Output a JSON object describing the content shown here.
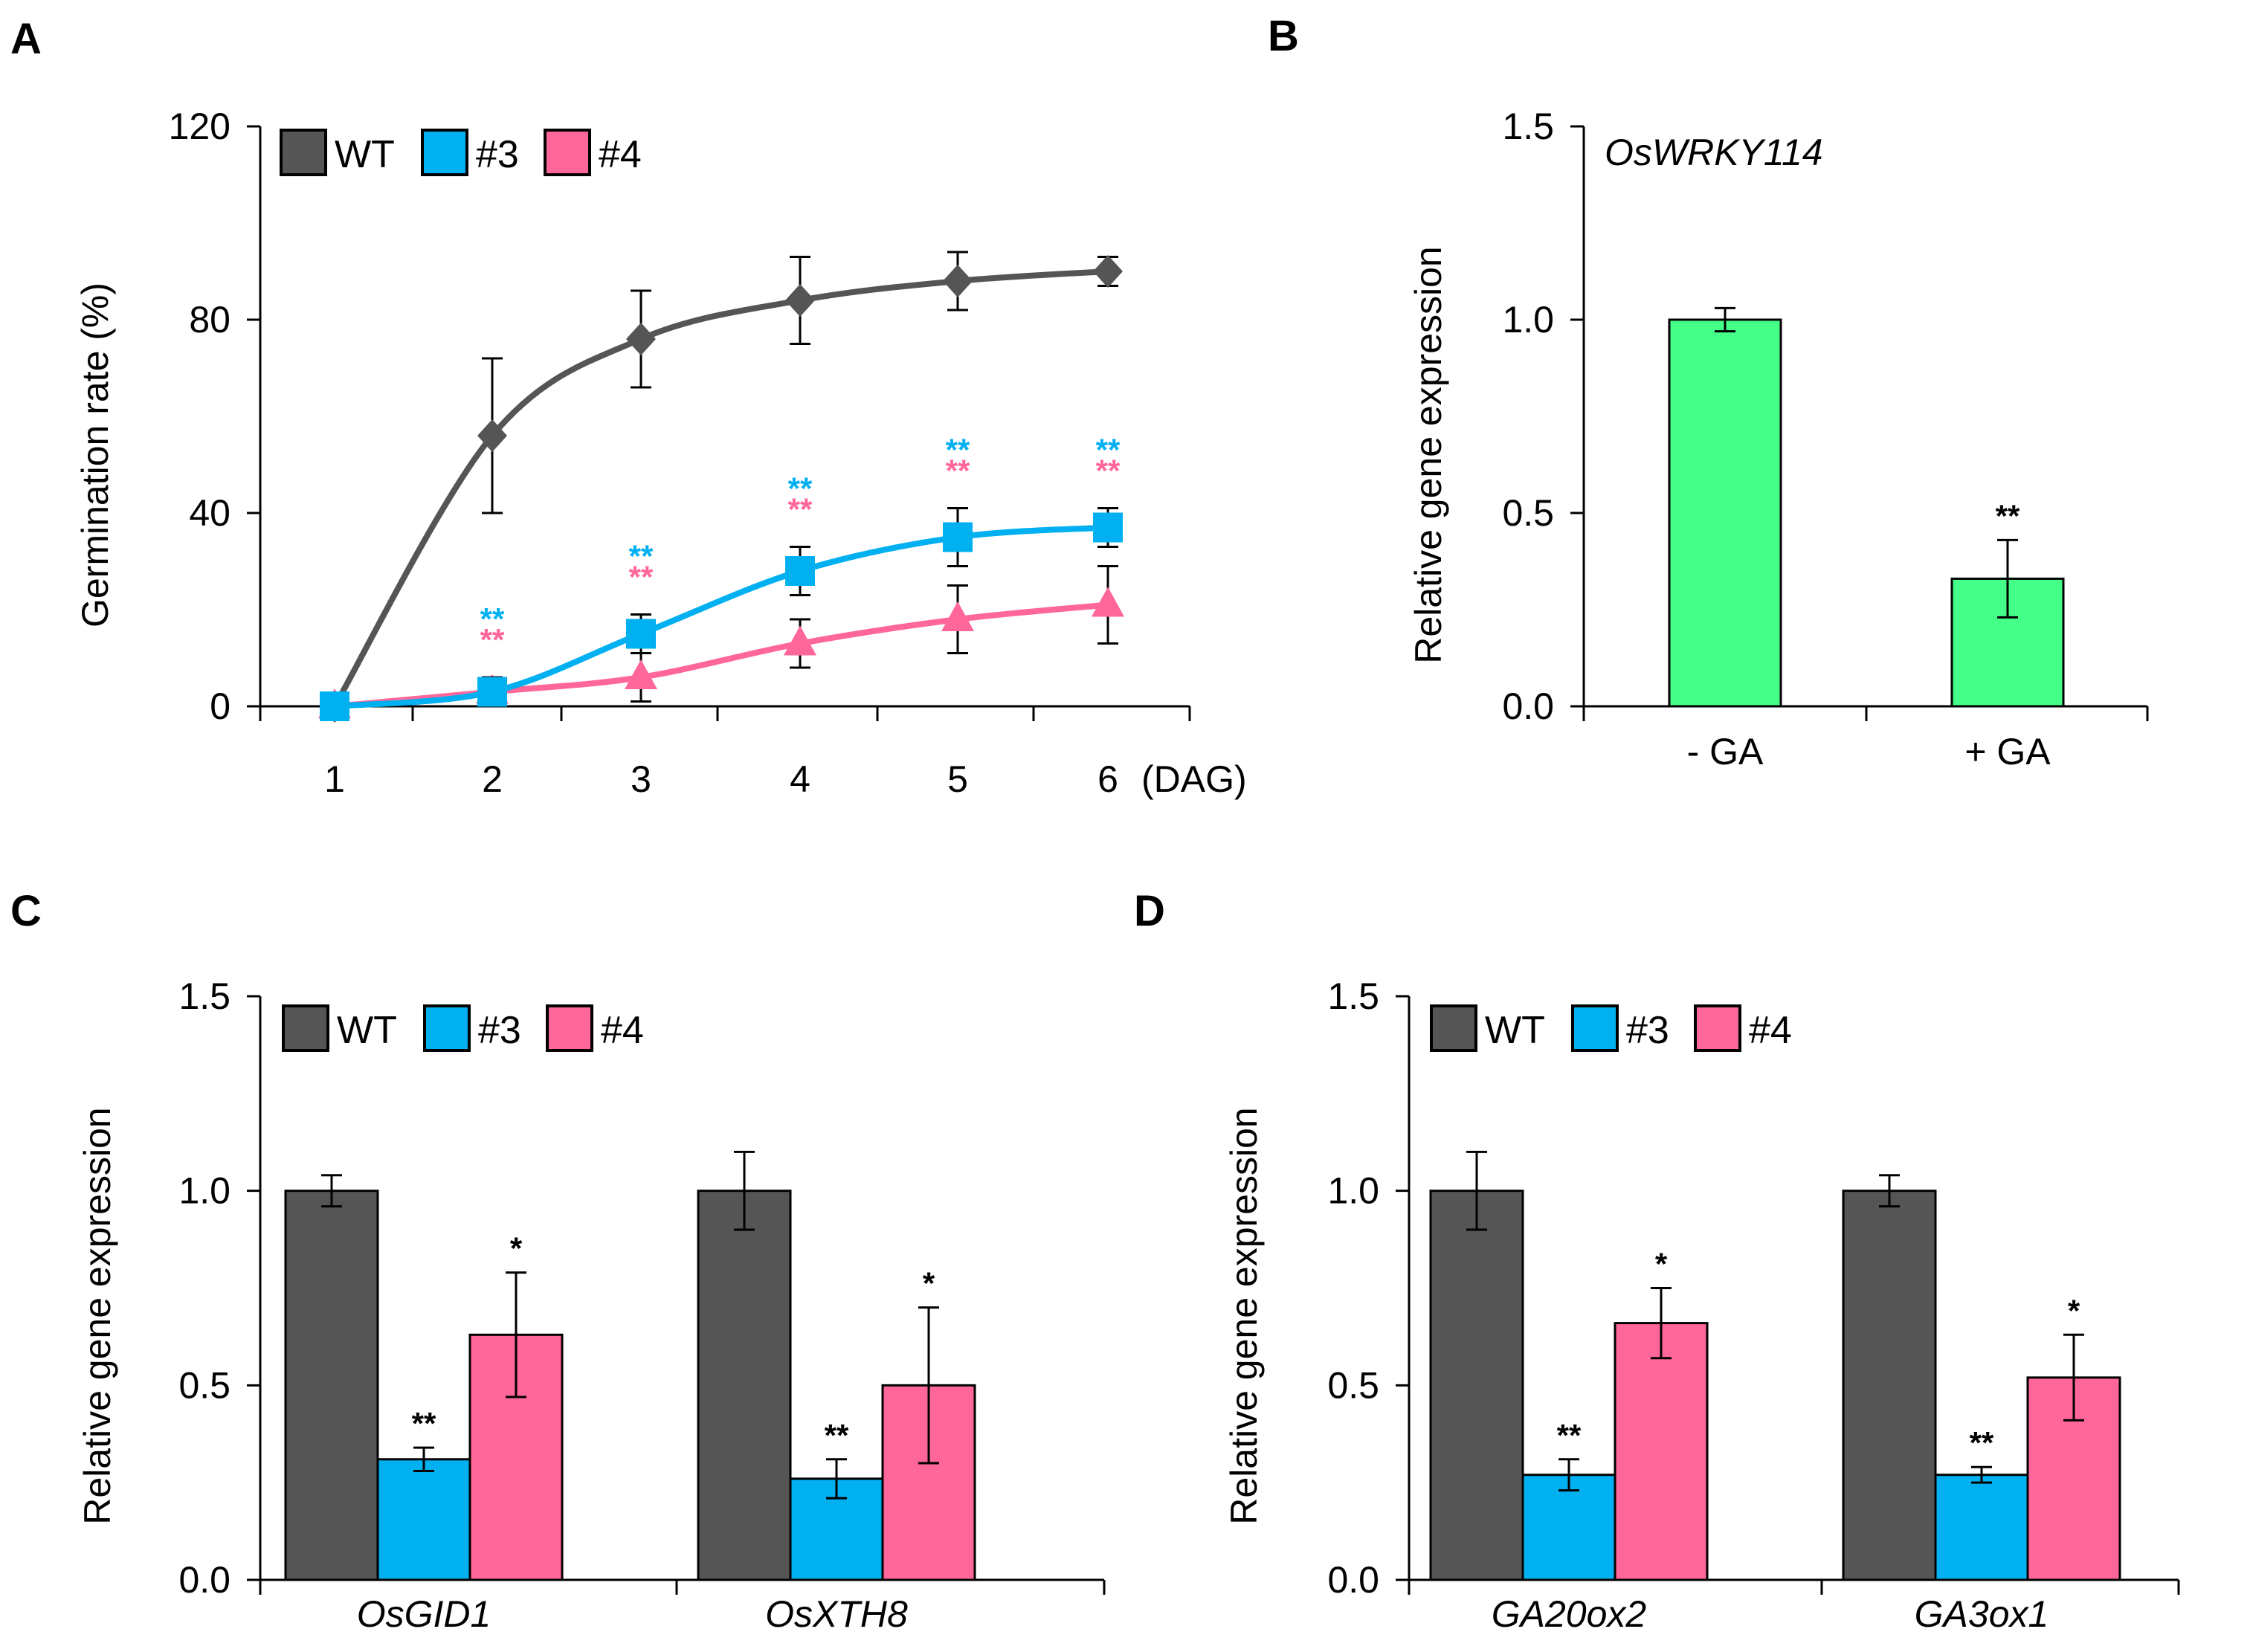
{
  "panels": {
    "A": "A",
    "B": "B",
    "C": "C",
    "D": "D"
  },
  "colors": {
    "WT": "#555555",
    "#3": "#00b0f0",
    "#4": "#ff6699",
    "B_bar": "#44ff88"
  },
  "chart_data": [
    {
      "panel": "A",
      "type": "line",
      "xlabel": "(DAG)",
      "ylabel": "Germination rate (%)",
      "ylim": [
        0,
        120
      ],
      "yticks": [
        "0",
        "40",
        "80",
        "120"
      ],
      "categories": [
        "1",
        "2",
        "3",
        "4",
        "5",
        "6"
      ],
      "legend": [
        "WT",
        "#3",
        "#4"
      ],
      "series": [
        {
          "name": "WT",
          "marker": "diamond",
          "values": [
            0,
            56,
            76,
            84,
            88,
            90
          ],
          "errors": [
            0,
            16,
            10,
            9,
            6,
            3
          ],
          "sig": [
            "",
            "",
            "",
            "",
            "",
            ""
          ]
        },
        {
          "name": "#3",
          "marker": "square",
          "values": [
            0,
            3,
            15,
            28,
            35,
            37
          ],
          "errors": [
            0,
            3,
            4,
            5,
            6,
            4
          ],
          "sig": [
            "",
            "**",
            "**",
            "**",
            "**",
            "**"
          ]
        },
        {
          "name": "#4",
          "marker": "triangle",
          "values": [
            0,
            3,
            6,
            13,
            18,
            21
          ],
          "errors": [
            0,
            3,
            5,
            5,
            7,
            8
          ],
          "sig": [
            "",
            "**",
            "**",
            "**",
            "**",
            "**"
          ]
        }
      ]
    },
    {
      "panel": "B",
      "type": "bar",
      "title": "OsWRKY114",
      "ylabel": "Relative gene expression",
      "ylim": [
        0,
        1.5
      ],
      "yticks": [
        "0.0",
        "0.5",
        "1.0",
        "1.5"
      ],
      "categories": [
        "- GA",
        "+ GA"
      ],
      "values": [
        1.0,
        0.33
      ],
      "errors": [
        0.03,
        0.1
      ],
      "sig": [
        "",
        "**"
      ]
    },
    {
      "panel": "C",
      "type": "bar",
      "ylabel": "Relative gene expression",
      "ylim": [
        0,
        1.5
      ],
      "yticks": [
        "0.0",
        "0.5",
        "1.0",
        "1.5"
      ],
      "categories": [
        "OsGID1",
        "OsXTH8"
      ],
      "legend": [
        "WT",
        "#3",
        "#4"
      ],
      "series": [
        {
          "name": "WT",
          "values": [
            1.0,
            1.0
          ],
          "errors": [
            0.04,
            0.1
          ],
          "sig": [
            "",
            ""
          ]
        },
        {
          "name": "#3",
          "values": [
            0.31,
            0.26
          ],
          "errors": [
            0.03,
            0.05
          ],
          "sig": [
            "**",
            "**"
          ]
        },
        {
          "name": "#4",
          "values": [
            0.63,
            0.5
          ],
          "errors": [
            0.16,
            0.2
          ],
          "sig": [
            "*",
            "*"
          ]
        }
      ]
    },
    {
      "panel": "D",
      "type": "bar",
      "ylabel": "Relative gene expression",
      "ylim": [
        0,
        1.5
      ],
      "yticks": [
        "0.0",
        "0.5",
        "1.0",
        "1.5"
      ],
      "categories": [
        "GA20ox2",
        "GA3ox1"
      ],
      "legend": [
        "WT",
        "#3",
        "#4"
      ],
      "series": [
        {
          "name": "WT",
          "values": [
            1.0,
            1.0
          ],
          "errors": [
            0.1,
            0.04
          ],
          "sig": [
            "",
            ""
          ]
        },
        {
          "name": "#3",
          "values": [
            0.27,
            0.27
          ],
          "errors": [
            0.04,
            0.02
          ],
          "sig": [
            "**",
            "**"
          ]
        },
        {
          "name": "#4",
          "values": [
            0.66,
            0.52
          ],
          "errors": [
            0.09,
            0.11
          ],
          "sig": [
            "*",
            "*"
          ]
        }
      ]
    }
  ]
}
